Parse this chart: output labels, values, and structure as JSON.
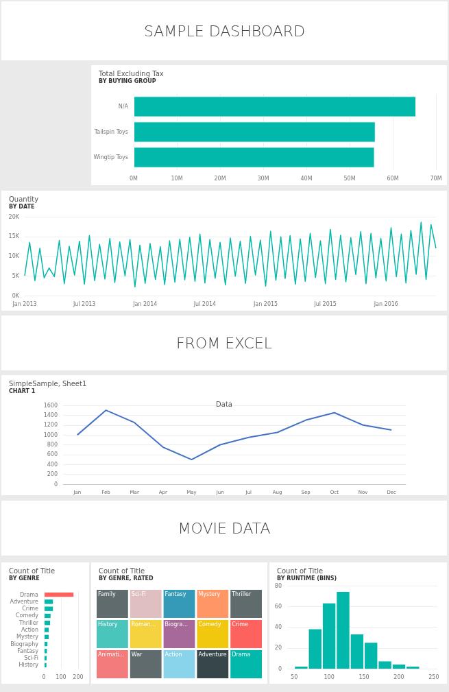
{
  "chart_data": [
    {
      "type": "other",
      "title": "SAMPLE DASHBOARD"
    },
    {
      "type": "bar",
      "title": "Total Excluding Tax",
      "subtitle": "BY BUYING GROUP",
      "orientation": "horizontal",
      "categories": [
        "N/A",
        "Tailspin Toys",
        "Wingtip Toys"
      ],
      "values": [
        65400000,
        56000000,
        55800000
      ],
      "color": "#01b8aa",
      "xlim": [
        0,
        70000000
      ],
      "xticks": [
        {
          "value": 0,
          "label": "0M"
        },
        {
          "value": 10000000,
          "label": "10M"
        },
        {
          "value": 20000000,
          "label": "20M"
        },
        {
          "value": 30000000,
          "label": "30M"
        },
        {
          "value": 40000000,
          "label": "40M"
        },
        {
          "value": 50000000,
          "label": "50M"
        },
        {
          "value": 60000000,
          "label": "60M"
        },
        {
          "value": 70000000,
          "label": "70M"
        }
      ],
      "grid": "x"
    },
    {
      "type": "line",
      "title": "Quantity",
      "subtitle": "BY DATE",
      "color": "#01b8aa",
      "xlim": [
        "2013-01-01",
        "2016-05-31"
      ],
      "xticks": [
        {
          "value": "2013-01-01",
          "label": "Jan 2013"
        },
        {
          "value": "2013-07-01",
          "label": "Jul 2013"
        },
        {
          "value": "2014-01-01",
          "label": "Jan 2014"
        },
        {
          "value": "2014-07-01",
          "label": "Jul 2014"
        },
        {
          "value": "2015-01-01",
          "label": "Jan 2015"
        },
        {
          "value": "2015-07-01",
          "label": "Jul 2015"
        },
        {
          "value": "2016-01-01",
          "label": "Jan 2016"
        }
      ],
      "ylim": [
        0,
        20000
      ],
      "yticks": [
        {
          "value": 0,
          "label": "0K"
        },
        {
          "value": 5000,
          "label": "5K"
        },
        {
          "value": 10000,
          "label": "10K"
        },
        {
          "value": 15000,
          "label": "15K"
        },
        {
          "value": 20000,
          "label": "20K"
        }
      ],
      "grid": "y",
      "x": [
        "2013-01-01",
        "2013-01-16",
        "2013-02-01",
        "2013-02-16",
        "2013-03-01",
        "2013-03-16",
        "2013-04-01",
        "2013-04-16",
        "2013-05-01",
        "2013-05-16",
        "2013-06-01",
        "2013-06-16",
        "2013-07-01",
        "2013-07-16",
        "2013-08-01",
        "2013-08-16",
        "2013-09-01",
        "2013-09-16",
        "2013-10-01",
        "2013-10-16",
        "2013-11-01",
        "2013-11-16",
        "2013-12-01",
        "2013-12-16",
        "2014-01-01",
        "2014-01-16",
        "2014-02-01",
        "2014-02-16",
        "2014-03-01",
        "2014-03-16",
        "2014-04-01",
        "2014-04-16",
        "2014-05-01",
        "2014-05-16",
        "2014-06-01",
        "2014-06-16",
        "2014-07-01",
        "2014-07-16",
        "2014-08-01",
        "2014-08-16",
        "2014-09-01",
        "2014-09-16",
        "2014-10-01",
        "2014-10-16",
        "2014-11-01",
        "2014-11-16",
        "2014-12-01",
        "2014-12-16",
        "2015-01-01",
        "2015-01-16",
        "2015-02-01",
        "2015-02-16",
        "2015-03-01",
        "2015-03-16",
        "2015-04-01",
        "2015-04-16",
        "2015-05-01",
        "2015-05-16",
        "2015-06-01",
        "2015-06-16",
        "2015-07-01",
        "2015-07-16",
        "2015-08-01",
        "2015-08-16",
        "2015-09-01",
        "2015-09-16",
        "2015-10-01",
        "2015-10-16",
        "2015-11-01",
        "2015-11-16",
        "2015-12-01",
        "2015-12-16",
        "2016-01-01",
        "2016-01-16",
        "2016-02-01",
        "2016-02-16",
        "2016-03-01",
        "2016-03-16",
        "2016-04-01",
        "2016-04-16",
        "2016-05-01",
        "2016-05-16",
        "2016-05-31"
      ],
      "values": [
        5000,
        13500,
        3800,
        12000,
        4500,
        7000,
        4800,
        14000,
        3000,
        12500,
        5200,
        13800,
        2900,
        15200,
        3800,
        13000,
        4200,
        14500,
        3300,
        13600,
        5000,
        14200,
        2200,
        12800,
        3100,
        13200,
        4100,
        12400,
        2800,
        13900,
        3400,
        14300,
        4000,
        14800,
        3600,
        15600,
        3200,
        14200,
        4400,
        13500,
        2700,
        14600,
        4900,
        13800,
        3100,
        15000,
        5200,
        14100,
        2400,
        16300,
        3900,
        14900,
        4300,
        15200,
        2900,
        14400,
        3600,
        15800,
        4600,
        13900,
        3000,
        16800,
        4100,
        15300,
        3500,
        14700,
        5300,
        16200,
        3000,
        15800,
        4500,
        14500,
        3700,
        17200,
        4800,
        15600,
        3200,
        16500,
        5400,
        18600,
        4100,
        18000,
        12000
      ]
    },
    {
      "type": "other",
      "title": "FROM EXCEL"
    },
    {
      "type": "line",
      "title": "SimpleSample, Sheet1",
      "subtitle": "CHART 1",
      "annotations": [
        "Data"
      ],
      "categories": [
        "Jan",
        "Feb",
        "Mar",
        "Apr",
        "May",
        "Jun",
        "Jul",
        "Aug",
        "Sep",
        "Oct",
        "Nov",
        "Dec"
      ],
      "values": [
        1000,
        1500,
        1250,
        750,
        500,
        800,
        950,
        1050,
        1300,
        1450,
        1200,
        1100
      ],
      "color": "#4472c4",
      "ylim": [
        0,
        1600
      ],
      "yticks": [
        0,
        200,
        400,
        600,
        800,
        1000,
        1200,
        1400,
        1600
      ],
      "grid": "y"
    },
    {
      "type": "other",
      "title": "MOVIE DATA"
    },
    {
      "type": "bar",
      "title": "Count of Title",
      "subtitle": "BY GENRE",
      "orientation": "horizontal",
      "categories": [
        "Drama",
        "Adventure",
        "Crime",
        "Comedy",
        "Thriller",
        "Action",
        "Mystery",
        "Biography",
        "Fantasy",
        "Sci-Fi",
        "History"
      ],
      "values": [
        177,
        57,
        57,
        43,
        40,
        32,
        32,
        25,
        22,
        20,
        19
      ],
      "colors": [
        "#fd625e",
        "#01b8aa",
        "#01b8aa",
        "#01b8aa",
        "#01b8aa",
        "#01b8aa",
        "#01b8aa",
        "#01b8aa",
        "#01b8aa",
        "#01b8aa",
        "#01b8aa"
      ],
      "xlim": [
        0,
        200
      ],
      "xticks": [
        0,
        100,
        200
      ],
      "grid": "x"
    },
    {
      "type": "other",
      "title": "Count of Title",
      "subtitle": "BY GENRE, RATED",
      "categories": [
        "Drama",
        "Crime",
        "Adventure",
        "Comedy",
        "Thriller",
        "Mystery",
        "Action",
        "Biogra...",
        "Fantasy",
        "War",
        "Roman...",
        "Sci-Fi",
        "Animati...",
        "History",
        "Family"
      ],
      "colors": [
        "#01b8aa",
        "#fd625e",
        "#374649",
        "#f2c80f",
        "#5f6b6d",
        "#fe9666",
        "#8ad4eb",
        "#a66999",
        "#3599b8",
        "#5f6b6d",
        "#f5d33f",
        "#dfbfbf",
        "#f47b7b",
        "#4ac5bb",
        "#5f6b6d"
      ]
    },
    {
      "type": "histogram",
      "title": "Count of Title",
      "subtitle": "BY RUNTIME (BINS)",
      "bins": [
        50,
        70,
        90,
        110,
        130,
        150,
        170,
        190,
        210,
        230
      ],
      "values": [
        2,
        38,
        63,
        74,
        33,
        25,
        7,
        4,
        2
      ],
      "color": "#01b8aa",
      "xlim": [
        40,
        255
      ],
      "xticks": [
        50,
        100,
        150,
        200,
        250
      ],
      "ylim": [
        0,
        80
      ],
      "yticks": [
        0,
        20,
        40,
        60,
        80
      ],
      "grid": "y"
    }
  ]
}
